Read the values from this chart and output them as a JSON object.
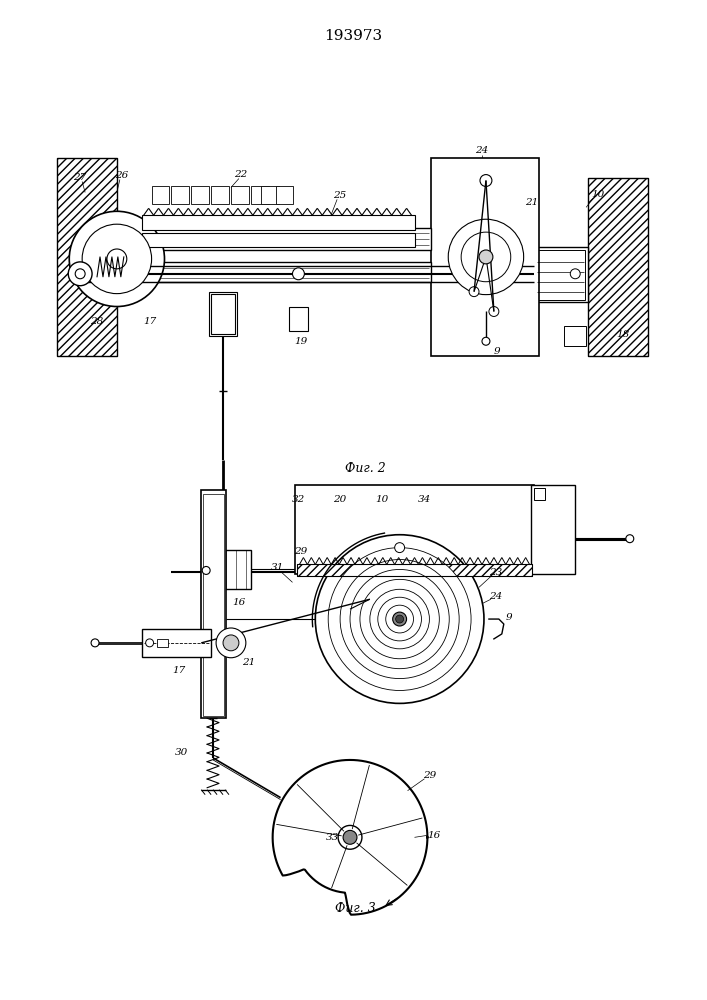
{
  "title": "193973",
  "fig2_label": "Фиг. 2",
  "fig3_label": "Фиг. 3",
  "bg_color": "#ffffff",
  "line_color": "#000000"
}
